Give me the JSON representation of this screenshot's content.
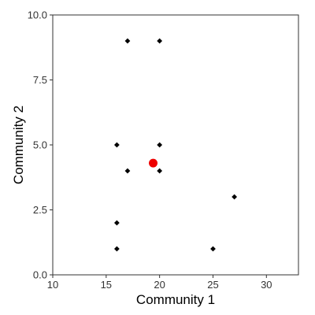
{
  "chart_data": {
    "type": "scatter",
    "title": "",
    "xlabel": "Community 1",
    "ylabel": "Community 2",
    "xlim": [
      10,
      33
    ],
    "ylim": [
      0,
      10
    ],
    "x_ticks": [
      10,
      15,
      20,
      25,
      30
    ],
    "x_tick_labels": [
      "10",
      "15",
      "20",
      "25",
      "30"
    ],
    "y_ticks": [
      0,
      2.5,
      5,
      7.5,
      10
    ],
    "y_tick_labels": [
      "0.0",
      "2.5",
      "5.0",
      "7.5",
      "10.0"
    ],
    "grid": false,
    "series": [
      {
        "color": "#000000",
        "marker": "diamond",
        "points": [
          {
            "x": 17,
            "y": 9
          },
          {
            "x": 20,
            "y": 9
          },
          {
            "x": 16,
            "y": 5
          },
          {
            "x": 20,
            "y": 5
          },
          {
            "x": 17,
            "y": 4
          },
          {
            "x": 20,
            "y": 4
          },
          {
            "x": 27,
            "y": 3
          },
          {
            "x": 16,
            "y": 2
          },
          {
            "x": 16,
            "y": 1
          },
          {
            "x": 25,
            "y": 1
          }
        ]
      },
      {
        "color": "#ee0000",
        "marker": "circle",
        "points": [
          {
            "x": 19.4,
            "y": 4.3
          }
        ]
      }
    ]
  }
}
